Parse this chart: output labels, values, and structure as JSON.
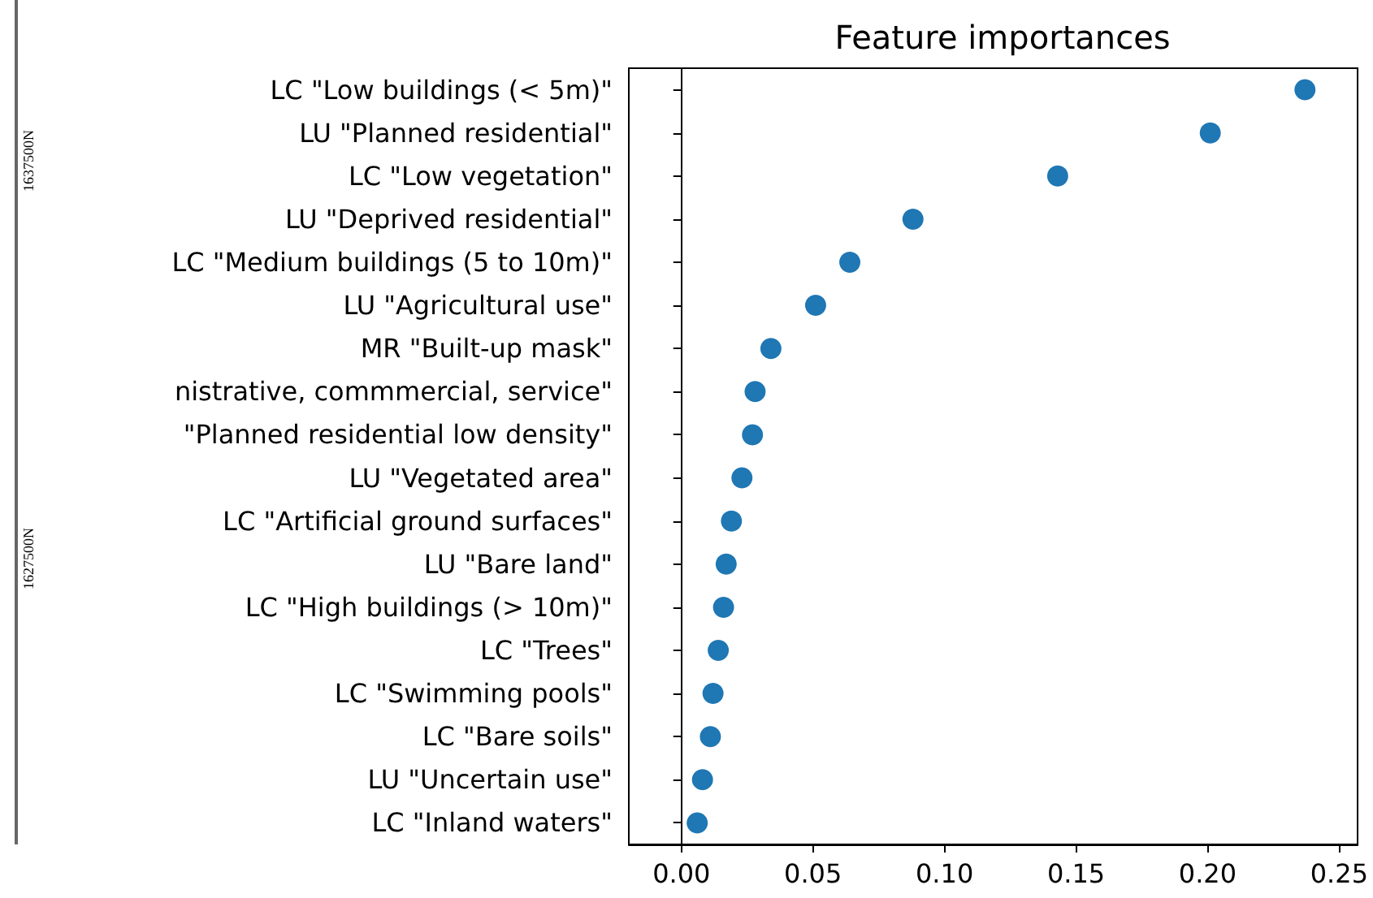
{
  "chart_data": {
    "type": "scatter",
    "title": "Feature importances",
    "orientation": "horizontal",
    "categories": [
      "LC \"Low buildings (< 5m)\"",
      "LU \"Planned residential\"",
      "LC \"Low vegetation\"",
      "LU \"Deprived residential\"",
      "LC \"Medium buildings (5 to 10m)\"",
      "LU \"Agricultural use\"",
      "MR \"Built-up mask\"",
      "nistrative, commmercial, service\"",
      "\"Planned residential low density\"",
      "LU \"Vegetated area\"",
      "LC \"Artificial ground surfaces\"",
      "LU \"Bare land\"",
      "LC \"High buildings (> 10m)\"",
      "LC \"Trees\"",
      "LC \"Swimming pools\"",
      "LC \"Bare soils\"",
      "LU \"Uncertain use\"",
      "LC \"Inland waters\""
    ],
    "values": [
      0.237,
      0.201,
      0.143,
      0.088,
      0.064,
      0.051,
      0.034,
      0.028,
      0.027,
      0.023,
      0.019,
      0.017,
      0.016,
      0.014,
      0.012,
      0.011,
      0.008,
      0.006
    ],
    "color": "#1f77b4",
    "marker": "circle",
    "xlim": [
      -0.02,
      0.257
    ],
    "xticks": [
      {
        "value": 0,
        "label": "0.00"
      },
      {
        "value": 0.05,
        "label": "0.05"
      },
      {
        "value": 0.1,
        "label": "0.10"
      },
      {
        "value": 0.15,
        "label": "0.15"
      },
      {
        "value": 0.2,
        "label": "0.20"
      },
      {
        "value": 0.25,
        "label": "0.25"
      }
    ],
    "annotations": [
      "1637500N",
      "1627500N"
    ]
  }
}
